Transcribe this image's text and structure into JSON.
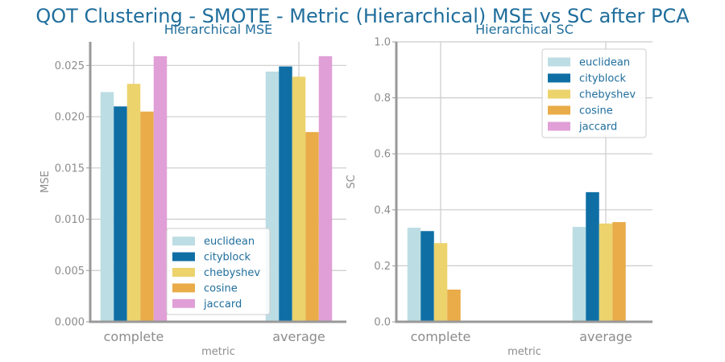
{
  "title": "QOT Clustering - SMOTE - Metric (Hierarchical) MSE vs SC after PCA",
  "series_colors": [
    "#bcdde3",
    "#0f6fa5",
    "#ecd36c",
    "#e9ac48",
    "#e09fd6"
  ],
  "chart_data": [
    {
      "type": "bar",
      "title": "Hierarchical MSE",
      "xlabel": "metric",
      "ylabel": "MSE",
      "categories": [
        "complete",
        "average"
      ],
      "ylim": [
        0,
        0.0273
      ],
      "yticks": [
        "0.000",
        "0.005",
        "0.010",
        "0.015",
        "0.020",
        "0.025"
      ],
      "ytick_values": [
        0,
        0.005,
        0.01,
        0.015,
        0.02,
        0.025
      ],
      "grid": true,
      "legend_position": "lower-right",
      "series": [
        {
          "name": "euclidean",
          "values": [
            0.0224,
            0.0244
          ]
        },
        {
          "name": "cityblock",
          "values": [
            0.021,
            0.0249
          ]
        },
        {
          "name": "chebyshev",
          "values": [
            0.0232,
            0.0239
          ]
        },
        {
          "name": "cosine",
          "values": [
            0.0205,
            0.0185
          ]
        },
        {
          "name": "jaccard",
          "values": [
            0.0259,
            0.0259
          ]
        }
      ]
    },
    {
      "type": "bar",
      "title": "Hierarchical SC",
      "xlabel": "metric",
      "ylabel": "SC",
      "categories": [
        "complete",
        "average"
      ],
      "ylim": [
        0,
        1.0
      ],
      "yticks": [
        "0.0",
        "0.2",
        "0.4",
        "0.6",
        "0.8",
        "1.0"
      ],
      "ytick_values": [
        0,
        0.2,
        0.4,
        0.6,
        0.8,
        1.0
      ],
      "grid": true,
      "legend_position": "upper-right",
      "series": [
        {
          "name": "euclidean",
          "values": [
            0.336,
            0.339
          ]
        },
        {
          "name": "cityblock",
          "values": [
            0.324,
            0.463
          ]
        },
        {
          "name": "chebyshev",
          "values": [
            0.281,
            0.351
          ]
        },
        {
          "name": "cosine",
          "values": [
            0.115,
            0.356
          ]
        },
        {
          "name": "jaccard",
          "values": [
            null,
            null
          ]
        }
      ]
    }
  ]
}
